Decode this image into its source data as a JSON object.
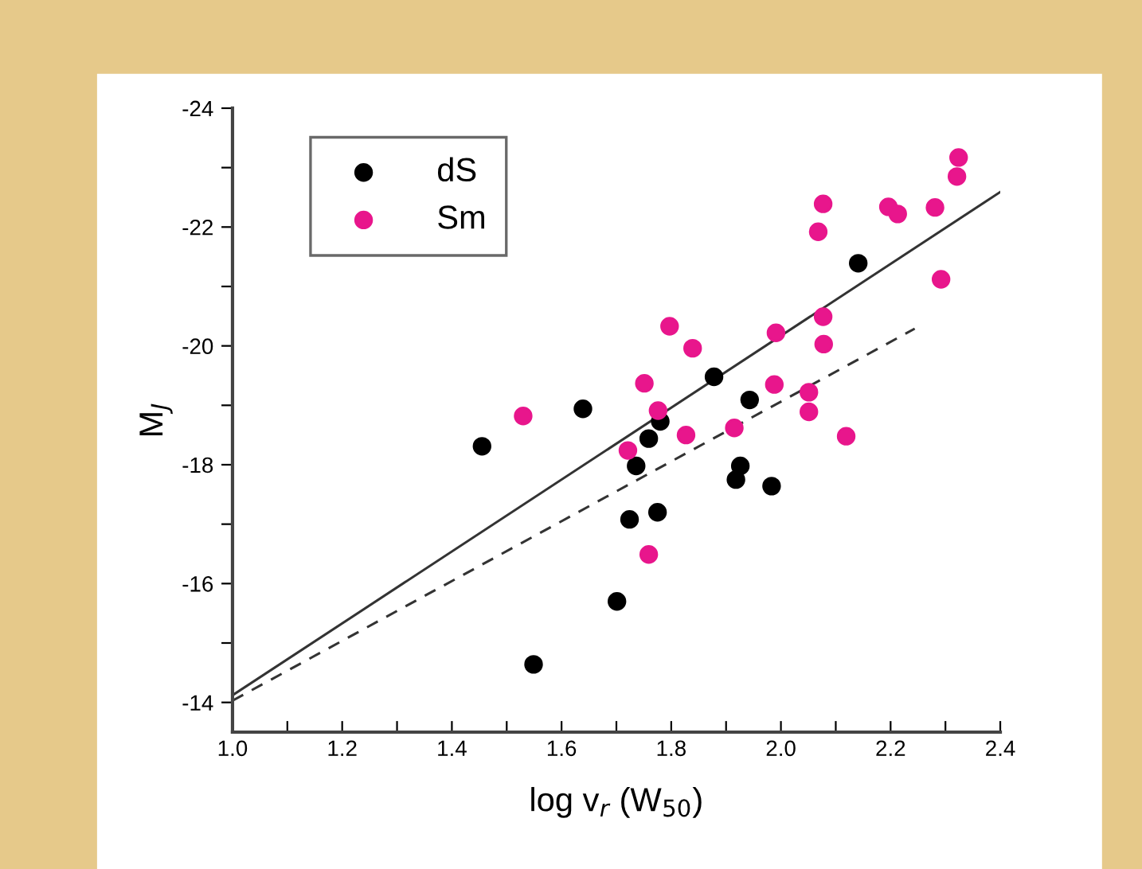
{
  "chart_data": {
    "type": "scatter",
    "xlabel": "log v$_{r}$ (W$_{50}$)",
    "ylabel": "M$_{J}$",
    "xlim": [
      1.0,
      2.4
    ],
    "ylim": [
      -13.5,
      -24
    ],
    "xticks": [
      {
        "value": 1.0,
        "label": "1.0"
      },
      {
        "value": 1.1,
        "label": null
      },
      {
        "value": 1.2,
        "label": "1.2"
      },
      {
        "value": 1.3,
        "label": null
      },
      {
        "value": 1.4,
        "label": "1.4"
      },
      {
        "value": 1.5,
        "label": null
      },
      {
        "value": 1.6,
        "label": "1.6"
      },
      {
        "value": 1.7,
        "label": null
      },
      {
        "value": 1.8,
        "label": "1.8"
      },
      {
        "value": 1.9,
        "label": null
      },
      {
        "value": 2.0,
        "label": "2.0"
      },
      {
        "value": 2.1,
        "label": null
      },
      {
        "value": 2.2,
        "label": "2.2"
      },
      {
        "value": 2.3,
        "label": null
      },
      {
        "value": 2.4,
        "label": "2.4"
      }
    ],
    "yticks": [
      -24,
      {
        "value": -23,
        "label": null
      },
      -22,
      {
        "value": -21,
        "label": null
      },
      -20,
      {
        "value": -19,
        "label": null
      },
      -18,
      {
        "value": -17,
        "label": null
      },
      -16,
      {
        "value": -15,
        "label": null
      },
      -14
    ],
    "grid": false,
    "legend": "top left",
    "marker": "circle",
    "series": [
      {
        "name": "dS",
        "color": "#000000",
        "x": [
          1.455,
          1.639,
          1.549,
          1.701,
          1.724,
          1.736,
          1.759,
          1.78,
          1.775,
          1.918,
          1.926,
          1.983,
          1.943,
          1.878,
          2.141
        ],
        "values": [
          -18.31,
          -18.94,
          -14.64,
          -15.7,
          -17.08,
          -17.98,
          -18.44,
          -18.73,
          -17.2,
          -17.75,
          -17.98,
          -17.64,
          -19.09,
          -19.48,
          -21.39
        ]
      },
      {
        "name": "Sm",
        "color": "#e8168c",
        "x": [
          1.53,
          1.721,
          1.751,
          1.776,
          1.797,
          1.839,
          1.827,
          1.915,
          1.988,
          1.991,
          2.051,
          2.051,
          2.077,
          2.078,
          2.068,
          2.077,
          2.119,
          2.196,
          2.213,
          2.281,
          2.292,
          2.321,
          2.324,
          1.759
        ],
        "values": [
          -18.82,
          -18.24,
          -19.37,
          -18.91,
          -20.33,
          -19.96,
          -18.5,
          -18.62,
          -19.35,
          -20.22,
          -19.22,
          -18.89,
          -20.49,
          -20.03,
          -21.92,
          -22.39,
          -18.48,
          -22.34,
          -22.22,
          -22.33,
          -21.12,
          -22.85,
          -23.17,
          -16.49
        ]
      },
      {
        "type": "line",
        "marker": "none",
        "color": "#333333",
        "line_style": "solid",
        "x": [
          1.0,
          2.4
        ],
        "values": [
          -14.12,
          -22.59
        ]
      },
      {
        "type": "line",
        "marker": "none",
        "color": "#333333",
        "line_style": "dashed",
        "x": [
          1.0,
          2.244
        ],
        "values": [
          -14.03,
          -20.29
        ]
      }
    ]
  }
}
